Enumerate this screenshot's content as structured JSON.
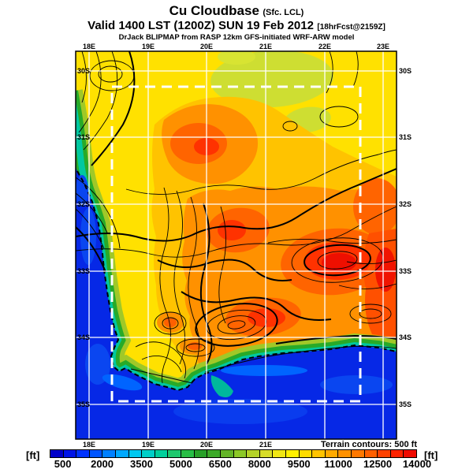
{
  "title": {
    "main": "Cu Cloudbase",
    "qualifier": "(Sfc. LCL)",
    "valid": "Valid 1400 LST (1200Z) SUN 19 Feb 2012",
    "forecast_tag": "[18hrFcst@2159Z]",
    "model": "DrJack BLIPMAP from RASP 12km GFS-initiated WRF-ARW model"
  },
  "map": {
    "top_labels": [
      "18E",
      "19E",
      "20E",
      "21E",
      "22E",
      "23E"
    ],
    "bottom_labels": [
      "18E",
      "19E",
      "20E",
      "21E"
    ],
    "left_labels": [
      "30S",
      "31S",
      "32S",
      "33S",
      "34S",
      "35S"
    ],
    "right_labels": [
      "30S",
      "31S",
      "32S",
      "33S",
      "34S",
      "35S"
    ],
    "terrain_note": "Terrain contours: 500 ft"
  },
  "colorbar": {
    "unit_left": "[ft]",
    "unit_right": "[ft]",
    "labels": [
      "500",
      "2000",
      "3500",
      "5000",
      "6500",
      "8000",
      "9500",
      "11000",
      "12500",
      "14000"
    ],
    "colors": [
      "#0000C8",
      "#0014E6",
      "#0032FF",
      "#0055FF",
      "#0080FF",
      "#00A8FF",
      "#00C8F0",
      "#00CFC8",
      "#00CF9B",
      "#1EC86E",
      "#28BE46",
      "#28A028",
      "#3CAA28",
      "#64B428",
      "#8CC828",
      "#B4D228",
      "#D7DC28",
      "#F0E614",
      "#FFF000",
      "#FFDC00",
      "#FFC300",
      "#FFAA00",
      "#FF9100",
      "#FF7800",
      "#FF5F00",
      "#FF4100",
      "#FF2300",
      "#F00A00"
    ]
  },
  "chart_data": {
    "type": "heatmap",
    "title": "Cu Cloudbase (Sfc. LCL)",
    "valid_time": "Valid 1400 LST (1200Z) SUN 19 Feb 2012 [18hrFcst@2159Z]",
    "model": "DrJack BLIPMAP from RASP 12km GFS-initiated WRF-ARW model",
    "units": "ft",
    "x_axis_ticks": [
      "18E",
      "19E",
      "20E",
      "21E",
      "22E",
      "23E"
    ],
    "y_axis_ticks": [
      "30S",
      "31S",
      "32S",
      "33S",
      "34S",
      "35S"
    ],
    "scale_tick_values": [
      500,
      2000,
      3500,
      5000,
      6500,
      8000,
      9500,
      11000,
      12500,
      14000
    ],
    "scale_segment_step_ft": 500,
    "scale_range_ft": [
      500,
      14000
    ],
    "terrain_contour_interval_ft": 500,
    "legend_position": "bottom",
    "grid": "1-degree white graticule with dashed white inner model domain box",
    "approx_regions": [
      {
        "region": "Atlantic ocean (west of coastline)",
        "approx_value_ft": "500-2000"
      },
      {
        "region": "Southern ocean / south coast water",
        "approx_value_ft": "500-2000"
      },
      {
        "region": "coastal strip (green/cyan band)",
        "approx_value_ft": "3500-6500"
      },
      {
        "region": "northern interior (yellow)",
        "approx_value_ft": "8000-9500"
      },
      {
        "region": "central and eastern interior (orange/red maxima)",
        "approx_value_ft": "11000-14000"
      }
    ]
  }
}
